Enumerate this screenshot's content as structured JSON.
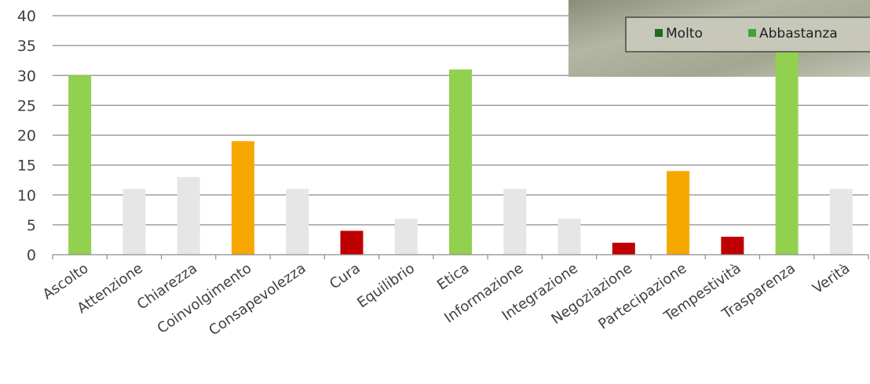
{
  "chart_data": {
    "type": "bar",
    "title": "",
    "xlabel": "",
    "ylabel": "",
    "ylim": [
      0,
      40
    ],
    "yticks": [
      0,
      5,
      10,
      15,
      20,
      25,
      30,
      35,
      40
    ],
    "grid": true,
    "categories": [
      "Ascolto",
      "Attenzione",
      "Chiarezza",
      "Coinvolgimento",
      "Consapevolezza",
      "Cura",
      "Equilibrio",
      "Etica",
      "Informazione",
      "Integrazione",
      "Negoziazione",
      "Partecipazione",
      "Tempestività",
      "Trasparenza",
      "Verità"
    ],
    "values": [
      30,
      11,
      13,
      19,
      11,
      4,
      6,
      31,
      11,
      6,
      2,
      14,
      3,
      34,
      11
    ],
    "bar_colors": [
      "#92d050",
      "#e6e6e6",
      "#e6e6e6",
      "#f7a800",
      "#e6e6e6",
      "#c00000",
      "#e6e6e6",
      "#92d050",
      "#e6e6e6",
      "#e6e6e6",
      "#c00000",
      "#f7a800",
      "#c00000",
      "#92d050",
      "#e6e6e6"
    ],
    "legend": {
      "placement": "top-right",
      "entries": [
        {
          "label": "Molto",
          "color": "#1e6b1e"
        },
        {
          "label": "Abbastanza",
          "color": "#3aa63a"
        }
      ]
    }
  }
}
